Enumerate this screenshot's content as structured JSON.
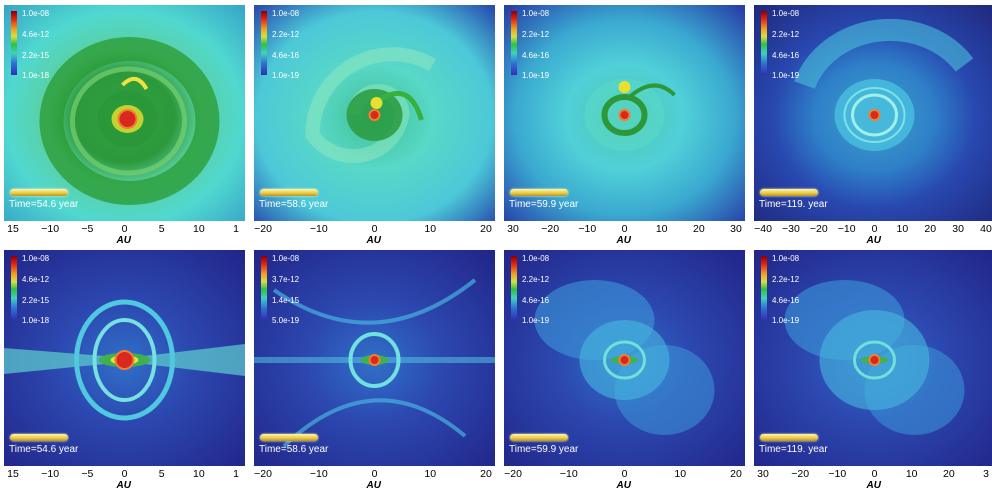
{
  "axis_label": "AU",
  "panels": [
    {
      "id": "p1",
      "row": 0,
      "col": 0,
      "style": "face",
      "palette": "warm",
      "colorbar": [
        "1.0e-08",
        "4.6e-12",
        "2.2e-15",
        "1.0e-18"
      ],
      "time": "Time=54.6 year",
      "ticks": [
        "15",
        "−10",
        "−5",
        "0",
        "5",
        "10",
        "1"
      ]
    },
    {
      "id": "p2",
      "row": 0,
      "col": 1,
      "style": "spiral",
      "palette": "warm",
      "colorbar": [
        "1.0e-08",
        "2.2e-12",
        "4.6e-16",
        "1.0e-19"
      ],
      "time": "Time=58.6 year",
      "ticks": [
        "−20",
        "−10",
        "0",
        "10",
        "20"
      ]
    },
    {
      "id": "p3",
      "row": 0,
      "col": 2,
      "style": "pix",
      "palette": "cool",
      "colorbar": [
        "1.0e-08",
        "2.2e-12",
        "4.6e-16",
        "1.0e-19"
      ],
      "time": "Time=59.9 year",
      "ticks": [
        "30",
        "−20",
        "−10",
        "0",
        "10",
        "20",
        "30"
      ]
    },
    {
      "id": "p4",
      "row": 0,
      "col": 3,
      "style": "swirl",
      "palette": "dark",
      "colorbar": [
        "1.0e-08",
        "2.2e-12",
        "4.6e-16",
        "1.0e-19"
      ],
      "time": "Time=119. year",
      "ticks": [
        "−40",
        "−30",
        "−20",
        "−10",
        "0",
        "10",
        "20",
        "30",
        "40"
      ]
    },
    {
      "id": "p5",
      "row": 1,
      "col": 0,
      "style": "edge",
      "palette": "dark",
      "colorbar": [
        "1.0e-08",
        "4.6e-12",
        "2.2e-15",
        "1.0e-18"
      ],
      "time": "Time=54.6 year",
      "ticks": [
        "15",
        "−10",
        "−5",
        "0",
        "5",
        "10",
        "1"
      ]
    },
    {
      "id": "p6",
      "row": 1,
      "col": 1,
      "style": "edge2",
      "palette": "dark",
      "colorbar": [
        "1.0e-08",
        "3.7e-12",
        "1.4e-15",
        "5.0e-19"
      ],
      "time": "Time=58.6 year",
      "ticks": [
        "−20",
        "−10",
        "0",
        "10",
        "20"
      ]
    },
    {
      "id": "p7",
      "row": 1,
      "col": 2,
      "style": "pixedge",
      "palette": "dark",
      "colorbar": [
        "1.0e-08",
        "2.2e-12",
        "4.6e-16",
        "1.0e-19"
      ],
      "time": "Time=59.9 year",
      "ticks": [
        "−20",
        "−10",
        "0",
        "10",
        "20"
      ]
    },
    {
      "id": "p8",
      "row": 1,
      "col": 3,
      "style": "pixedge2",
      "palette": "dark",
      "colorbar": [
        "1.0e-08",
        "2.2e-12",
        "4.6e-16",
        "1.0e-19"
      ],
      "time": "Time=119. year",
      "ticks": [
        "30",
        "−20",
        "−10",
        "0",
        "10",
        "20",
        "3"
      ]
    }
  ]
}
